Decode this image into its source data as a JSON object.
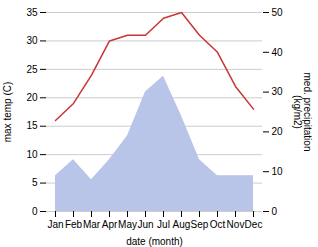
{
  "chart_data": {
    "type": "line",
    "xlabel": "date (month)",
    "ylabel": "max temp (C)",
    "y2label": "med. precipitation\n(kg/m2)",
    "categories": [
      "Jan",
      "Feb",
      "Mar",
      "Apr",
      "May",
      "Jun",
      "Jul",
      "Aug",
      "Sep",
      "Oct",
      "Nov",
      "Dec"
    ],
    "series": [
      {
        "type": "area",
        "axis": "y2",
        "color": "#b8c4e8",
        "values": [
          9,
          13,
          8,
          13,
          19,
          30,
          34,
          24,
          13,
          9,
          9,
          9
        ]
      },
      {
        "type": "line",
        "color": "#cc3333",
        "values": [
          16,
          19,
          24,
          30,
          31,
          31,
          34,
          35,
          31,
          28,
          22,
          18
        ]
      }
    ],
    "ylim": [
      0,
      35
    ],
    "yticks": [
      0,
      5,
      10,
      15,
      20,
      25,
      30,
      35
    ],
    "y2lim": [
      0,
      50
    ],
    "y2ticks": [
      0,
      10,
      20,
      30,
      40,
      50
    ],
    "grid": true
  }
}
